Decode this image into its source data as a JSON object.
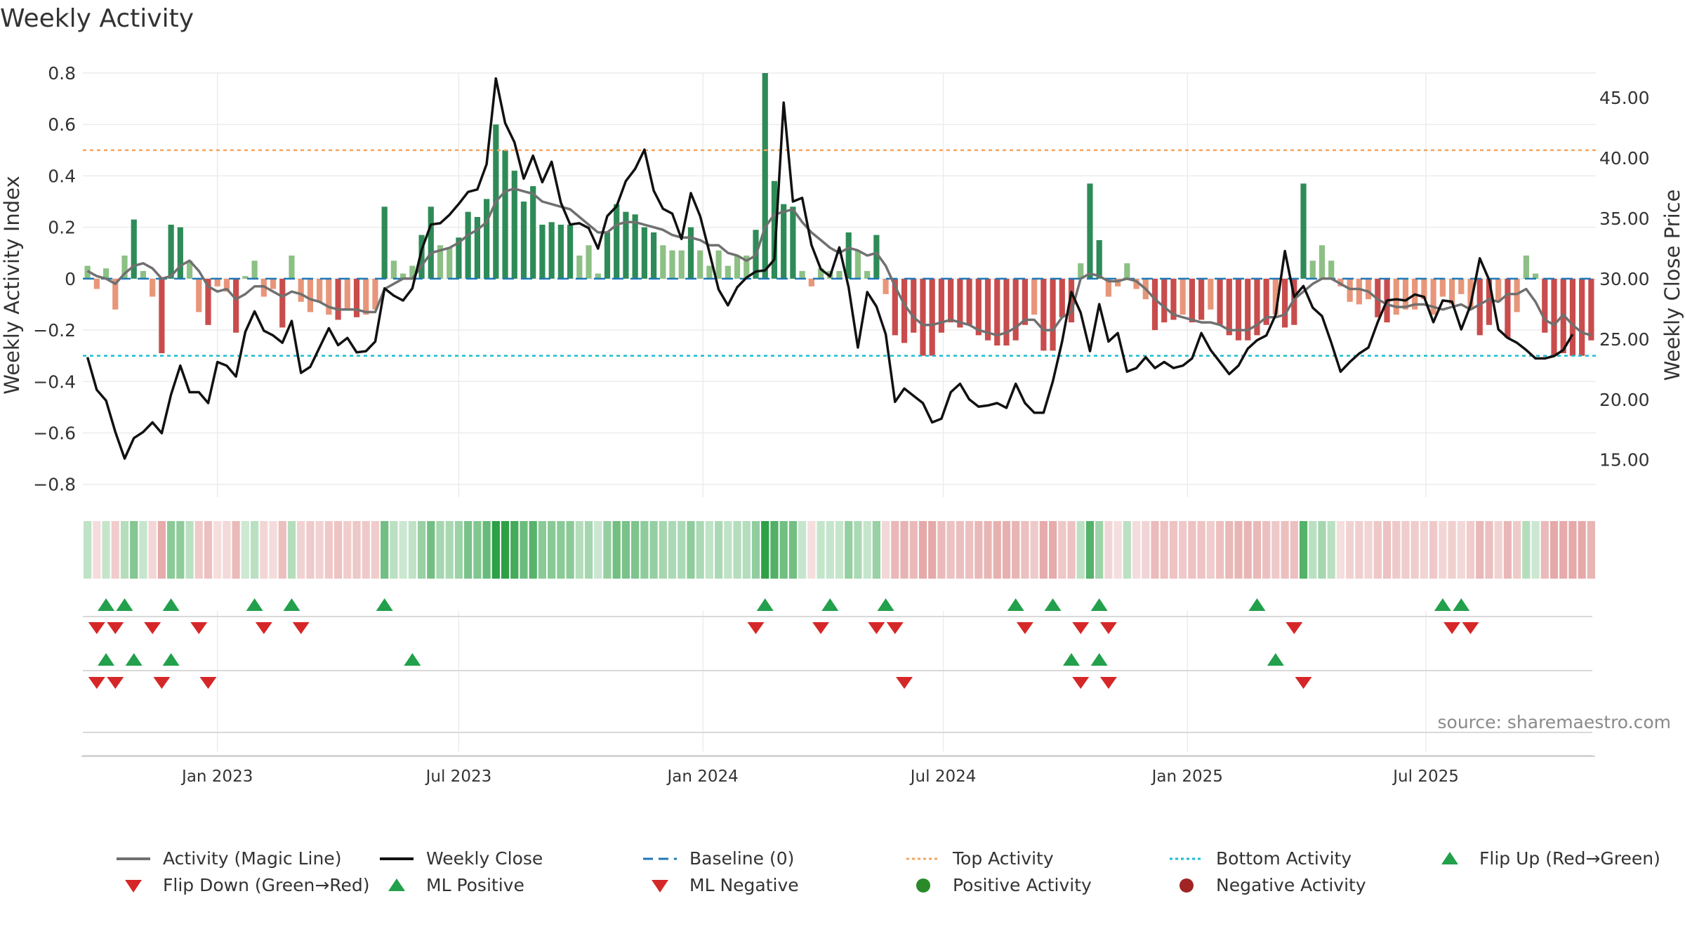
{
  "title": "Weekly Activity",
  "source": "source: sharemaestro.com",
  "legend": {
    "magic_line": "Activity (Magic Line)",
    "weekly_close": "Weekly Close",
    "baseline": "Baseline (0)",
    "top_activity": "Top Activity",
    "bottom_activity": "Bottom Activity",
    "flip_up": "Flip Up (Red→Green)",
    "flip_down": "Flip Down (Green→Red)",
    "ml_positive": "ML Positive",
    "ml_negative": "ML Negative",
    "positive_activity": "Positive Activity",
    "negative_activity": "Negative Activity"
  },
  "colors": {
    "strong_green": "#2e8b57",
    "light_green": "#8cc084",
    "strong_red": "#c94c4c",
    "light_red": "#e8967a",
    "magic_line": "#707070",
    "close_line": "#111111",
    "baseline": "#1f77b4",
    "top": "#f4a460",
    "bottom": "#17becf",
    "marker_green": "#22a04b",
    "marker_red": "#d62728"
  },
  "chart_data": {
    "type": "bar",
    "title": "Weekly Activity",
    "ylabel": "Weekly Activity Index",
    "y2label": "Weekly Close Price",
    "ylim": [
      -0.85,
      0.8
    ],
    "y2lim": [
      11.9,
      47.05
    ],
    "yticks": [
      0.8,
      0.6,
      0.4,
      0.2,
      0,
      -0.2,
      -0.4,
      -0.6,
      -0.8
    ],
    "ytick_labels": [
      "0.8",
      "0.6",
      "0.4",
      "0.2",
      "0",
      "−0.2",
      "−0.4",
      "−0.6",
      "−0.8"
    ],
    "y2ticks": [
      45,
      40,
      35,
      30,
      25,
      20,
      15
    ],
    "y2tick_labels": [
      "45.00",
      "40.00",
      "35.00",
      "30.00",
      "25.00",
      "20.00",
      "15.00"
    ],
    "x_start": "2022-10-03",
    "x_end": "2025-10-06",
    "xtick_labels": [
      "Jan 2023",
      "Jul 2023",
      "Jan 2024",
      "Jul 2024",
      "Jan 2025",
      "Jul 2025"
    ],
    "xtick_weeks": [
      14.5,
      40.5,
      66.8,
      92.7,
      119,
      144.7
    ],
    "top_activity": 0.5,
    "bottom_activity": -0.3,
    "baseline": 0,
    "activity": [
      0.05,
      -0.04,
      0.04,
      -0.12,
      0.09,
      0.23,
      0.03,
      -0.07,
      -0.29,
      0.21,
      0.2,
      0.07,
      -0.13,
      -0.18,
      -0.03,
      -0.05,
      -0.21,
      0.01,
      0.07,
      -0.07,
      -0.04,
      -0.19,
      0.09,
      -0.09,
      -0.13,
      -0.09,
      -0.14,
      -0.16,
      -0.12,
      -0.15,
      -0.14,
      -0.12,
      0.28,
      0.07,
      0.02,
      0.05,
      0.17,
      0.28,
      0.13,
      0.12,
      0.16,
      0.26,
      0.24,
      0.31,
      0.6,
      0.5,
      0.42,
      0.3,
      0.36,
      0.21,
      0.22,
      0.21,
      0.21,
      0.09,
      0.13,
      0.02,
      0.18,
      0.29,
      0.26,
      0.25,
      0.2,
      0.18,
      0.13,
      0.11,
      0.11,
      0.2,
      0.11,
      0.05,
      0.11,
      0.05,
      0.09,
      0.09,
      0.19,
      0.8,
      0.38,
      0.29,
      0.28,
      0.03,
      -0.03,
      0.04,
      0.03,
      0.03,
      0.18,
      0.11,
      0.03,
      0.17,
      -0.06,
      -0.22,
      -0.25,
      -0.21,
      -0.3,
      -0.3,
      -0.21,
      -0.17,
      -0.19,
      -0.18,
      -0.22,
      -0.24,
      -0.26,
      -0.26,
      -0.24,
      -0.18,
      -0.14,
      -0.28,
      -0.28,
      -0.15,
      -0.17,
      0.06,
      0.37,
      0.15,
      -0.07,
      -0.03,
      0.06,
      -0.04,
      -0.08,
      -0.2,
      -0.17,
      -0.16,
      -0.14,
      -0.17,
      -0.16,
      -0.12,
      -0.18,
      -0.22,
      -0.24,
      -0.24,
      -0.22,
      -0.18,
      -0.14,
      -0.19,
      -0.18,
      0.37,
      0.07,
      0.13,
      0.07,
      -0.03,
      -0.09,
      -0.1,
      -0.08,
      -0.15,
      -0.17,
      -0.14,
      -0.12,
      -0.12,
      -0.08,
      -0.14,
      -0.07,
      -0.1,
      -0.06,
      -0.12,
      -0.22,
      -0.18,
      -0.09,
      -0.23,
      -0.13,
      0.09,
      0.02,
      -0.21,
      -0.3,
      -0.29,
      -0.3,
      -0.3,
      -0.24
    ],
    "magic_line": [
      0.03,
      0.01,
      0.0,
      -0.02,
      0.02,
      0.05,
      0.06,
      0.04,
      0.0,
      0.01,
      0.05,
      0.07,
      0.03,
      -0.03,
      -0.05,
      -0.04,
      -0.08,
      -0.06,
      -0.03,
      -0.03,
      -0.05,
      -0.07,
      -0.05,
      -0.06,
      -0.08,
      -0.09,
      -0.11,
      -0.12,
      -0.12,
      -0.12,
      -0.13,
      -0.13,
      -0.04,
      -0.02,
      0.0,
      0.0,
      0.05,
      0.1,
      0.11,
      0.12,
      0.14,
      0.17,
      0.19,
      0.22,
      0.3,
      0.34,
      0.35,
      0.34,
      0.33,
      0.3,
      0.29,
      0.28,
      0.27,
      0.24,
      0.21,
      0.18,
      0.18,
      0.21,
      0.22,
      0.22,
      0.21,
      0.2,
      0.19,
      0.17,
      0.16,
      0.16,
      0.15,
      0.13,
      0.13,
      0.1,
      0.09,
      0.07,
      0.09,
      0.2,
      0.25,
      0.26,
      0.27,
      0.22,
      0.18,
      0.15,
      0.12,
      0.1,
      0.12,
      0.11,
      0.09,
      0.1,
      0.05,
      -0.03,
      -0.1,
      -0.15,
      -0.18,
      -0.18,
      -0.17,
      -0.16,
      -0.17,
      -0.18,
      -0.2,
      -0.21,
      -0.22,
      -0.21,
      -0.19,
      -0.16,
      -0.16,
      -0.2,
      -0.2,
      -0.15,
      -0.13,
      0.0,
      0.02,
      0.01,
      -0.01,
      -0.01,
      0.0,
      -0.01,
      -0.04,
      -0.08,
      -0.11,
      -0.14,
      -0.15,
      -0.16,
      -0.17,
      -0.17,
      -0.18,
      -0.2,
      -0.2,
      -0.2,
      -0.18,
      -0.15,
      -0.15,
      -0.14,
      -0.08,
      -0.05,
      -0.02,
      0.0,
      0.0,
      -0.02,
      -0.04,
      -0.04,
      -0.05,
      -0.08,
      -0.1,
      -0.11,
      -0.11,
      -0.1,
      -0.1,
      -0.11,
      -0.12,
      -0.11,
      -0.1,
      -0.12,
      -0.1,
      -0.08,
      -0.09,
      -0.06,
      -0.06,
      -0.04,
      -0.09,
      -0.16,
      -0.18,
      -0.14,
      -0.18,
      -0.21,
      -0.22
    ],
    "weekly_close": [
      23.5,
      20.8,
      19.9,
      17.3,
      15.1,
      16.8,
      17.3,
      18.1,
      17.2,
      20.4,
      22.8,
      20.6,
      20.6,
      19.7,
      23.1,
      22.8,
      21.9,
      25.6,
      27.3,
      25.7,
      25.3,
      24.7,
      26.5,
      22.2,
      22.7,
      24.3,
      25.9,
      24.5,
      25.1,
      23.9,
      24,
      24.8,
      29.2,
      28.6,
      28.2,
      29.2,
      32.4,
      34.5,
      34.6,
      35.3,
      36.2,
      37.2,
      37.4,
      39.5,
      46.6,
      42.9,
      41.3,
      38.3,
      40.2,
      38,
      39.7,
      36.3,
      34.5,
      34.6,
      34.2,
      32.5,
      35.2,
      36,
      38.1,
      39.1,
      40.7,
      37.3,
      35.8,
      35.4,
      33.3,
      37.1,
      35.2,
      32.2,
      29.1,
      27.8,
      29.3,
      30.1,
      30.6,
      30.7,
      31.6,
      44.6,
      36.4,
      36.7,
      32.8,
      30.8,
      30.2,
      32.6,
      29.3,
      24.3,
      28.9,
      27.7,
      25.4,
      19.8,
      20.9,
      20.3,
      19.7,
      18.1,
      18.4,
      20.6,
      21.3,
      20,
      19.4,
      19.5,
      19.7,
      19.3,
      21.3,
      19.7,
      18.9,
      18.9,
      21.5,
      24.8,
      28.9,
      27.2,
      24,
      27.9,
      24.8,
      25.5,
      22.3,
      22.6,
      23.5,
      22.6,
      23.1,
      22.6,
      22.8,
      23.4,
      25.5,
      24.1,
      23.1,
      22.1,
      22.8,
      24.2,
      24.9,
      25.3,
      27,
      32.3,
      28.5,
      29.4,
      27.6,
      26.9,
      24.7,
      22.3,
      23.1,
      23.8,
      24.3,
      26.4,
      28.2,
      28.3,
      28.2,
      28.7,
      28.5,
      26.4,
      28.2,
      28.1,
      25.8,
      27.8,
      31.7,
      29.9,
      25.8,
      25.1,
      24.7,
      24.1,
      23.4,
      23.4,
      23.6,
      24.1,
      25.4
    ],
    "flip_up": [
      2,
      4,
      9,
      18,
      22,
      32,
      73,
      80,
      86,
      100,
      104,
      109,
      126,
      146,
      148
    ],
    "flip_down": [
      1,
      3,
      7,
      12,
      19,
      23,
      72,
      79,
      85,
      87,
      101,
      107,
      110,
      130,
      147,
      149
    ],
    "ml_positive": [
      2,
      5,
      9,
      35,
      106,
      109,
      128
    ],
    "ml_negative": [
      1,
      3,
      8,
      13,
      88,
      107,
      110,
      131
    ]
  }
}
